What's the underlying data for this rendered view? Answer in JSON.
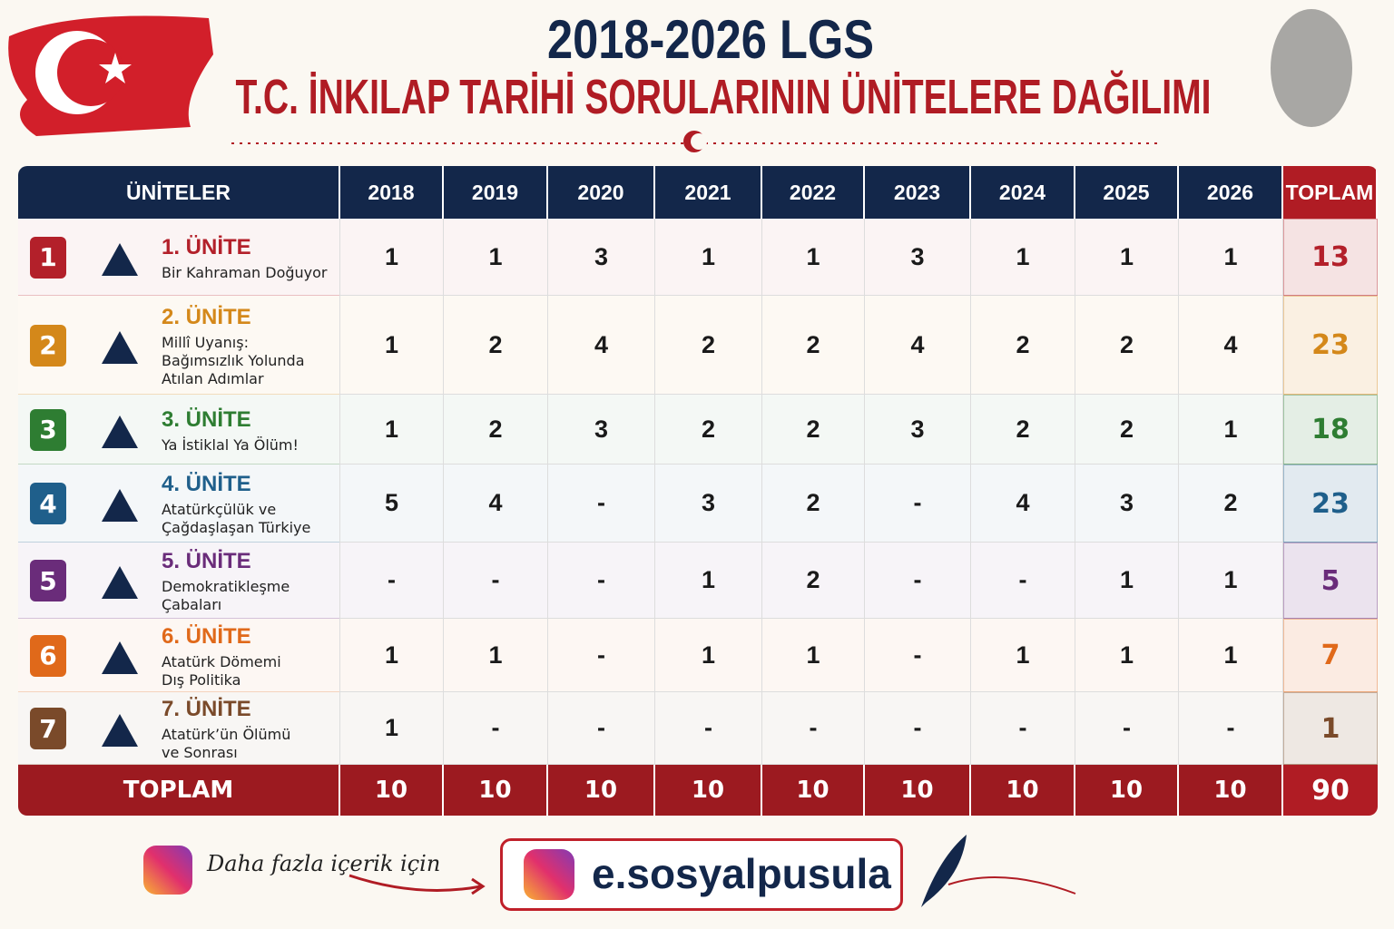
{
  "header": {
    "title_line1": "2018-2026 LGS",
    "title_line2": "T.C. İNKILAP TARİHİ SORULARININ ÜNİTELERE DAĞILIMI"
  },
  "table": {
    "columns": [
      "ÜNİTELER",
      "2018",
      "2019",
      "2020",
      "2021",
      "2022",
      "2023",
      "2024",
      "2025",
      "2026",
      "TOPLAM"
    ],
    "rows": [
      {
        "number": "1",
        "title": "1. ÜNİTE",
        "subtitle_lines": [
          "Bir Kahraman Doğuyor"
        ],
        "color": "#b3202a",
        "cells": [
          1,
          1,
          3,
          1,
          1,
          3,
          1,
          1,
          1
        ],
        "total": 13
      },
      {
        "number": "2",
        "title": "2. ÜNİTE",
        "subtitle_lines": [
          "Millî Uyanış:",
          "Bağımsızlık Yolunda",
          "Atılan Adımlar"
        ],
        "color": "#d4881a",
        "cells": [
          1,
          2,
          4,
          2,
          2,
          4,
          2,
          2,
          4
        ],
        "total": 23
      },
      {
        "number": "3",
        "title": "3. ÜNİTE",
        "subtitle_lines": [
          "Ya İstiklal Ya Ölüm!"
        ],
        "color": "#2e7d32",
        "cells": [
          1,
          2,
          3,
          2,
          2,
          3,
          2,
          2,
          1
        ],
        "total": 18
      },
      {
        "number": "4",
        "title": "4. ÜNİTE",
        "subtitle_lines": [
          "Atatürkçülük ve",
          "Çağdaşlaşan Türkiye"
        ],
        "color": "#1f5f8b",
        "cells": [
          5,
          4,
          "-",
          3,
          2,
          "-",
          4,
          3,
          2
        ],
        "total": 23
      },
      {
        "number": "5",
        "title": "5. ÜNİTE",
        "subtitle_lines": [
          "Demokratikleşme",
          "Çabaları"
        ],
        "color": "#6a2c7a",
        "cells": [
          "-",
          "-",
          "-",
          1,
          2,
          "-",
          "-",
          1,
          1
        ],
        "total": 5
      },
      {
        "number": "6",
        "title": "6. ÜNİTE",
        "subtitle_lines": [
          "Atatürk Dömemi",
          "Dış Politika"
        ],
        "color": "#e0691a",
        "cells": [
          1,
          1,
          "-",
          1,
          1,
          "-",
          1,
          1,
          1
        ],
        "total": 7
      },
      {
        "number": "7",
        "title": "7. ÜNİTE",
        "subtitle_lines": [
          "Atatürk’ün Ölümü",
          "ve Sonrası"
        ],
        "color": "#7a4a2a",
        "cells": [
          1,
          "-",
          "-",
          "-",
          "-",
          "-",
          "-",
          "-",
          "-"
        ],
        "total": 1
      }
    ],
    "footer": {
      "label": "TOPLAM",
      "cells": [
        10,
        10,
        10,
        10,
        10,
        10,
        10,
        10,
        10
      ],
      "total": 90
    }
  },
  "promo": {
    "text": "Daha fazla içerik için",
    "handle": "e.sosyalpusula"
  }
}
